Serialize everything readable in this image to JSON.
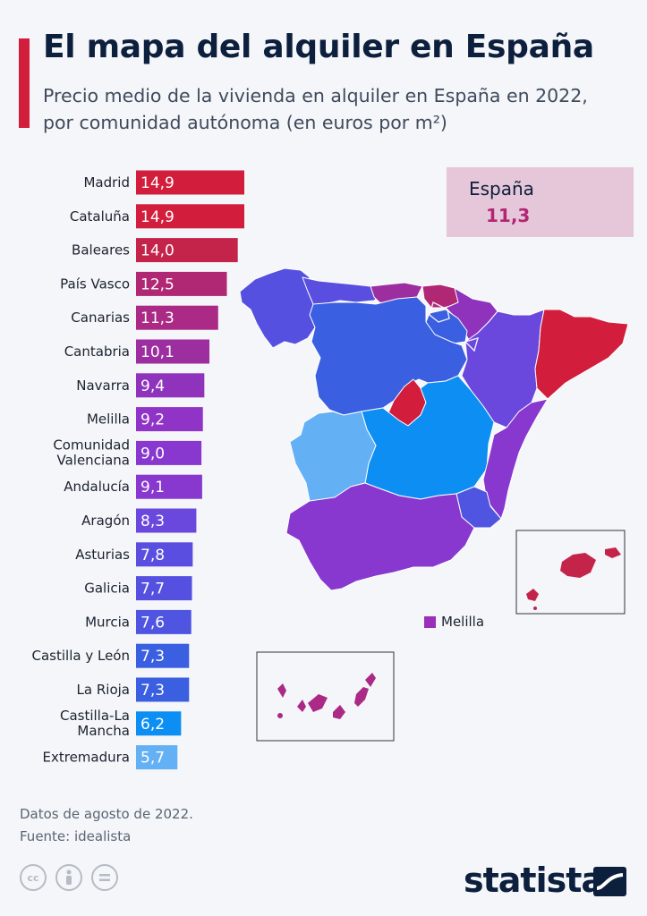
{
  "header": {
    "title": "El mapa del alquiler en España",
    "subtitle_line1": "Precio medio de la vivienda en alquiler en España en 2022,",
    "subtitle_line2": "por comunidad autónoma (en euros por m²)"
  },
  "national": {
    "label": "España",
    "value": "11,3"
  },
  "chart_data": {
    "type": "bar",
    "orientation": "horizontal",
    "title": "El mapa del alquiler en España",
    "subtitle": "Precio medio de la vivienda en alquiler en España en 2022, por comunidad autónoma (en euros por m²)",
    "categories": [
      [
        "Madrid"
      ],
      [
        "Cataluña"
      ],
      [
        "Baleares"
      ],
      [
        "País Vasco"
      ],
      [
        "Canarias"
      ],
      [
        "Cantabria"
      ],
      [
        "Navarra"
      ],
      [
        "Melilla"
      ],
      [
        "Comunidad",
        "Valenciana"
      ],
      [
        "Andalucía"
      ],
      [
        "Aragón"
      ],
      [
        "Asturias"
      ],
      [
        "Galicia"
      ],
      [
        "Murcia"
      ],
      [
        "Castilla y León"
      ],
      [
        "La Rioja"
      ],
      [
        "Castilla-La",
        "Mancha"
      ],
      [
        "Extremadura"
      ]
    ],
    "values": [
      14.9,
      14.9,
      14.0,
      12.5,
      11.3,
      10.1,
      9.4,
      9.2,
      9.0,
      9.1,
      8.3,
      7.8,
      7.7,
      7.6,
      7.3,
      7.3,
      6.2,
      5.7
    ],
    "value_labels": [
      "14,9",
      "14,9",
      "14,0",
      "12,5",
      "11,3",
      "10,1",
      "9,4",
      "9,2",
      "9,0",
      "9,1",
      "8,3",
      "7,8",
      "7,7",
      "7,6",
      "7,3",
      "7,3",
      "6,2",
      "5,7"
    ],
    "colors": [
      "#d21d3c",
      "#d21d3c",
      "#c5244a",
      "#b02774",
      "#aa2a86",
      "#9c2ea0",
      "#8f33bd",
      "#8f34c6",
      "#8838cf",
      "#8838cf",
      "#6a48de",
      "#5a4ee0",
      "#5550e0",
      "#4f55e0",
      "#3a5fe0",
      "#3a5fe0",
      "#0d8ef2",
      "#64b0f4"
    ],
    "xlim": [
      0,
      15
    ],
    "legend": "none",
    "grid": false
  },
  "map": {
    "legend_label": "Melilla",
    "legend_color": "#9a2fb8"
  },
  "footer": {
    "note": "Datos de agosto de 2022.",
    "source": "Fuente: idealista"
  },
  "license_icons": [
    "cc",
    "by",
    "nd"
  ],
  "brand": {
    "name": "statista"
  }
}
